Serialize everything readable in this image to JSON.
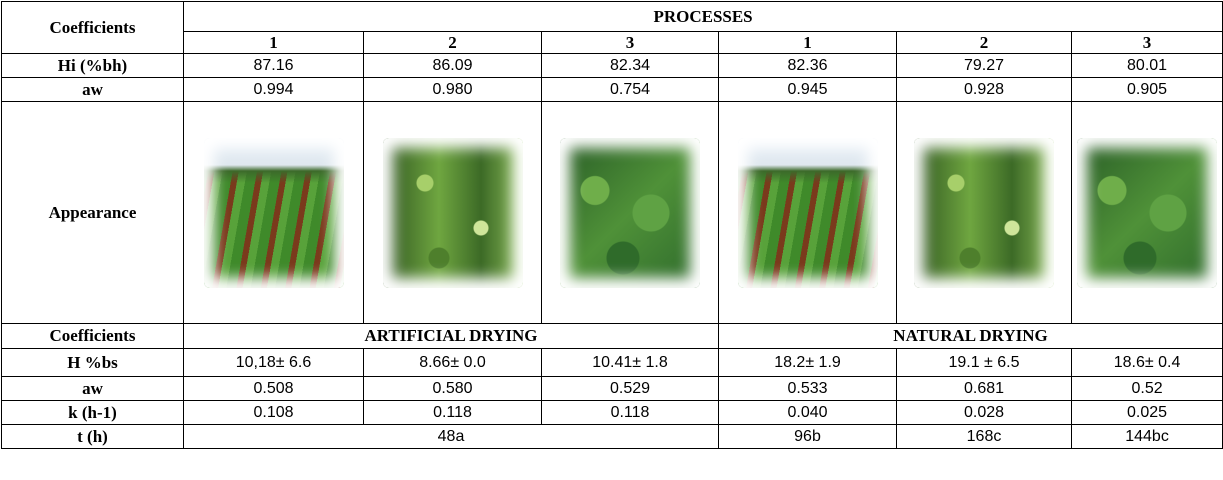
{
  "table": {
    "header": {
      "corner": "Coefficients",
      "group": "PROCESSES",
      "columns": [
        "1",
        "2",
        "3",
        "1",
        "2",
        "3"
      ]
    },
    "rows": [
      {
        "label": "Hi (%bh)",
        "cells": [
          "87.16",
          "86.09",
          "82.34",
          "82.36",
          "79.27",
          "80.01"
        ]
      },
      {
        "label": "aw",
        "cells": [
          "0.994",
          "0.980",
          "0.754",
          "0.945",
          "0.928",
          "0.905"
        ]
      }
    ],
    "appearance": "Appearance",
    "section": {
      "label": "Coefficients",
      "groups": [
        "ARTIFICIAL DRYING",
        "NATURAL DRYING"
      ]
    },
    "rows2": [
      {
        "label": "H %bs",
        "cells": [
          "10,18± 6.6",
          "8.66± 0.0",
          "10.41± 1.8",
          "18.2± 1.9",
          "19.1 ± 6.5",
          "18.6± 0.4"
        ]
      },
      {
        "label": "aw",
        "cells": [
          "0.508",
          "0.580",
          "0.529",
          "0.533",
          "0.681",
          "0.52"
        ]
      },
      {
        "label": "k (h-1)",
        "cells": [
          "0.108",
          "0.118",
          "0.118",
          "0.040",
          "0.028",
          "0.025"
        ]
      }
    ],
    "time": {
      "label": "t (h)",
      "cells": [
        "48a",
        "96b",
        "168c",
        "144bc"
      ]
    }
  }
}
